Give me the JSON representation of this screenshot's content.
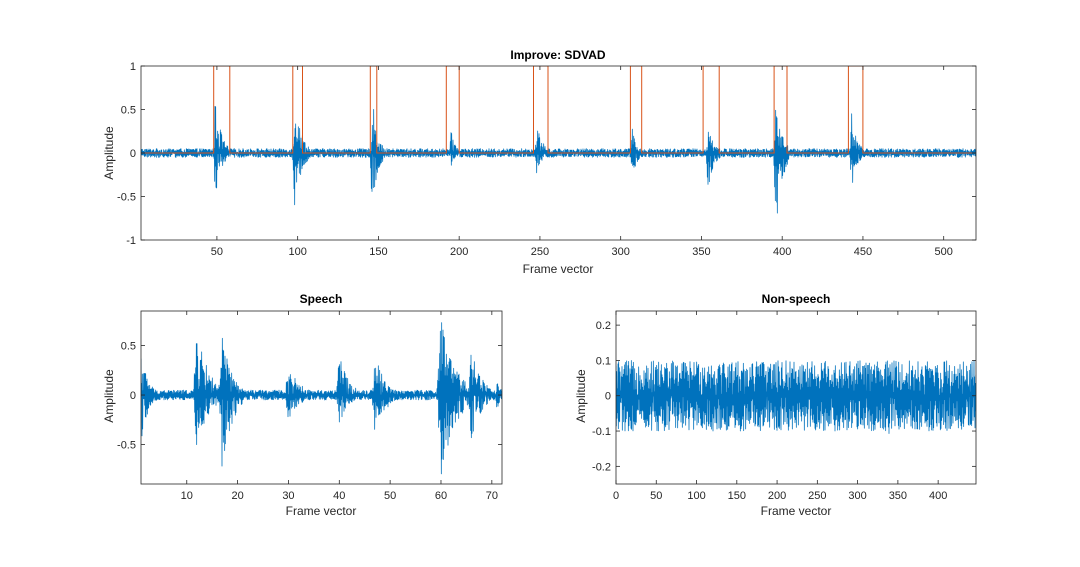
{
  "chart_data": [
    {
      "type": "line",
      "title": "Improve: SDVAD",
      "xlabel": "Frame vector",
      "ylabel": "Amplitude",
      "xlim": [
        3,
        520
      ],
      "ylim": [
        -1,
        1
      ],
      "xticks": [
        50,
        100,
        150,
        200,
        250,
        300,
        350,
        400,
        450,
        500
      ],
      "yticks": [
        -1,
        -0.5,
        0,
        0.5,
        1
      ],
      "xtick_labels": [
        "50",
        "100",
        "150",
        "200",
        "250",
        "300",
        "350",
        "400",
        "450",
        "500"
      ],
      "ytick_labels": [
        "-1",
        "-0.5",
        "0",
        "0.5",
        "1"
      ],
      "series": [
        {
          "color": "#0072BD",
          "noise_amplitude": 0.05,
          "bursts": [
            {
              "x": 49,
              "up": 0.65,
              "down": -0.55,
              "width": 8
            },
            {
              "x": 98,
              "up": 0.7,
              "down": -0.65,
              "width": 9
            },
            {
              "x": 146,
              "up": 0.7,
              "down": -0.85,
              "width": 7
            },
            {
              "x": 195,
              "up": 0.25,
              "down": -0.15,
              "width": 7
            },
            {
              "x": 248,
              "up": 0.35,
              "down": -0.25,
              "width": 8
            },
            {
              "x": 307,
              "up": 0.3,
              "down": -0.35,
              "width": 6
            },
            {
              "x": 354,
              "up": 0.35,
              "down": -0.45,
              "width": 8
            },
            {
              "x": 396,
              "up": 0.55,
              "down": -0.95,
              "width": 9
            },
            {
              "x": 443,
              "up": 0.5,
              "down": -0.5,
              "width": 7
            }
          ]
        },
        {
          "color": "#D95319",
          "type": "segments",
          "baseline": 0,
          "level": 1,
          "segments": [
            [
              48,
              58
            ],
            [
              97,
              103
            ],
            [
              145,
              149
            ],
            [
              192,
              200
            ],
            [
              246,
              255
            ],
            [
              306,
              313
            ],
            [
              351,
              361
            ],
            [
              395,
              403
            ],
            [
              441,
              450
            ]
          ]
        }
      ]
    },
    {
      "type": "line",
      "title": "Speech",
      "xlabel": "Frame vector",
      "ylabel": "Amplitude",
      "xlim": [
        1,
        72
      ],
      "ylim": [
        -0.9,
        0.85
      ],
      "xticks": [
        10,
        20,
        30,
        40,
        50,
        60,
        70
      ],
      "yticks": [
        -0.5,
        0,
        0.5
      ],
      "xtick_labels": [
        "10",
        "20",
        "30",
        "40",
        "50",
        "60",
        "70"
      ],
      "ytick_labels": [
        "-0.5",
        "0",
        "0.5"
      ],
      "series": [
        {
          "color": "#0072BD",
          "noise_amplitude": 0.05,
          "bursts": [
            {
              "x": 1,
              "up": 0.45,
              "down": -0.5,
              "width": 3
            },
            {
              "x": 12,
              "up": 0.68,
              "down": -0.55,
              "width": 5
            },
            {
              "x": 17,
              "up": 0.62,
              "down": -0.85,
              "width": 4
            },
            {
              "x": 30,
              "up": 0.3,
              "down": -0.25,
              "width": 5
            },
            {
              "x": 40,
              "up": 0.42,
              "down": -0.3,
              "width": 4
            },
            {
              "x": 47,
              "up": 0.45,
              "down": -0.5,
              "width": 4
            },
            {
              "x": 60,
              "up": 0.78,
              "down": -0.88,
              "width": 6
            },
            {
              "x": 66,
              "up": 0.55,
              "down": -0.5,
              "width": 4
            },
            {
              "x": 71,
              "up": 0.15,
              "down": -0.15,
              "width": 2
            }
          ]
        }
      ]
    },
    {
      "type": "line",
      "title": "Non-speech",
      "xlabel": "Frame vector",
      "ylabel": "Amplitude",
      "xlim": [
        0,
        447
      ],
      "ylim": [
        -0.25,
        0.24
      ],
      "xticks": [
        0,
        50,
        100,
        150,
        200,
        250,
        300,
        350,
        400
      ],
      "yticks": [
        -0.2,
        -0.1,
        0,
        0.1,
        0.2
      ],
      "xtick_labels": [
        "0",
        "50",
        "100",
        "150",
        "200",
        "250",
        "300",
        "350",
        "400"
      ],
      "ytick_labels": [
        "-0.2",
        "-0.1",
        "0",
        "0.1",
        "0.2"
      ],
      "series": [
        {
          "color": "#0072BD",
          "noise_amplitude": 0.1,
          "bursts": [
            {
              "x": 91,
              "up": 0.17,
              "down": -0.1,
              "width": 1
            },
            {
              "x": 131,
              "up": 0.15,
              "down": -0.12,
              "width": 1
            },
            {
              "x": 216,
              "up": 0.2,
              "down": -0.1,
              "width": 1
            },
            {
              "x": 300,
              "up": 0.16,
              "down": -0.12,
              "width": 1
            },
            {
              "x": 339,
              "up": 0.16,
              "down": -0.22,
              "width": 1
            }
          ]
        }
      ]
    }
  ]
}
